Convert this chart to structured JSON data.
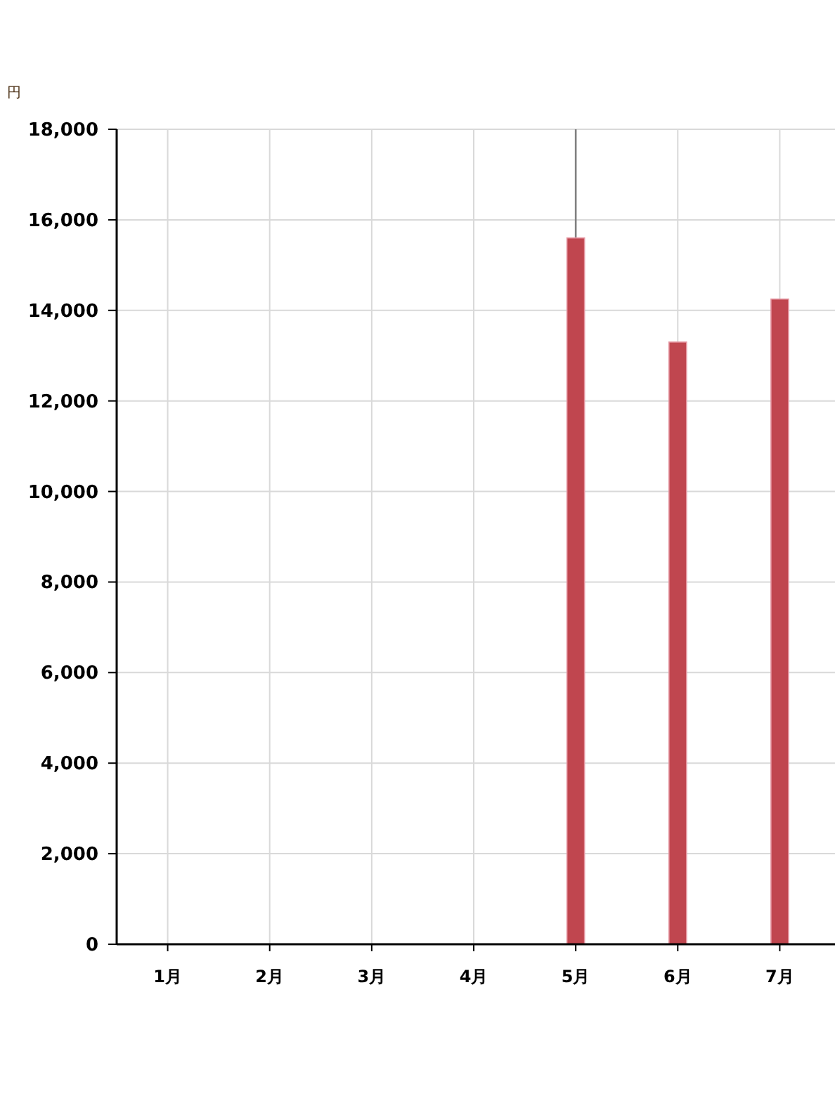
{
  "chart_data": {
    "type": "bar",
    "ylabel": "円",
    "categories": [
      "1月",
      "2月",
      "3月",
      "4月",
      "5月",
      "6月",
      "7月"
    ],
    "values": [
      null,
      null,
      null,
      null,
      15600,
      13300,
      14250
    ],
    "color": "#c0464f",
    "ylim": [
      0,
      18000
    ],
    "yticks": [
      0,
      {
        "value": 2000,
        "label": "2,000"
      },
      {
        "value": 4000,
        "label": "4,000"
      },
      {
        "value": 6000,
        "label": "6,000"
      },
      {
        "value": 8000,
        "label": "8,000"
      },
      {
        "value": 10000,
        "label": "10,000"
      },
      {
        "value": 12000,
        "label": "12,000"
      },
      {
        "value": 14000,
        "label": "14,000"
      },
      {
        "value": 16000,
        "label": "16,000"
      },
      {
        "value": 18000,
        "label": "18,000"
      }
    ],
    "grid": true,
    "ref_lines": [
      {
        "axis": "x",
        "value": "5月",
        "color": "#808080"
      }
    ]
  }
}
